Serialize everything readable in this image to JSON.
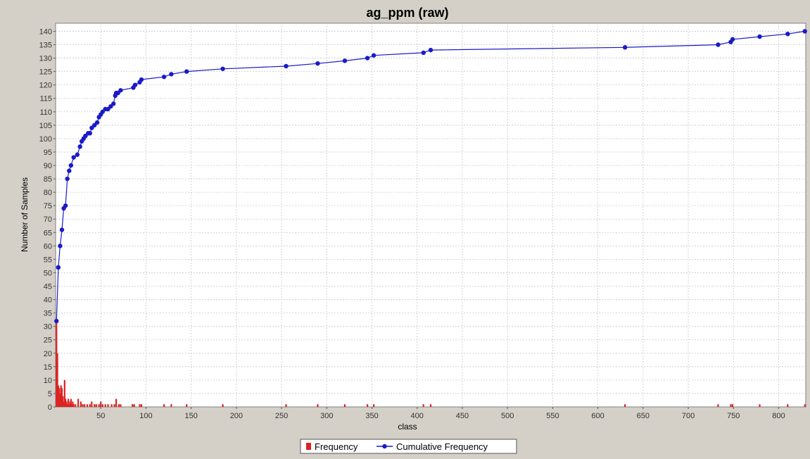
{
  "chart_data": {
    "type": "bar",
    "title": "ag_ppm (raw)",
    "xlabel": "class",
    "ylabel": "Number of Samples",
    "xlim": [
      0,
      830
    ],
    "ylim": [
      0,
      143
    ],
    "x_ticks": [
      50,
      100,
      150,
      200,
      250,
      300,
      350,
      400,
      450,
      500,
      550,
      600,
      650,
      700,
      750,
      800
    ],
    "y_ticks": [
      0,
      5,
      10,
      15,
      20,
      25,
      30,
      35,
      40,
      45,
      50,
      55,
      60,
      65,
      70,
      75,
      80,
      85,
      90,
      95,
      100,
      105,
      110,
      115,
      120,
      125,
      130,
      135,
      140
    ],
    "grid": true,
    "legend_position": "bottom",
    "colors": {
      "frequency": "#dd2222",
      "cumulative": "#1a1ac8",
      "plot_background": "#ffffff",
      "grid": "#c8c8c8",
      "frame": "#d4d0c8"
    },
    "series": [
      {
        "name": "Frequency",
        "type": "bar",
        "x": [
          1,
          2,
          3,
          4,
          5,
          6,
          7,
          8,
          9,
          10,
          11,
          12,
          13,
          14,
          15,
          16,
          17,
          18,
          19,
          20,
          22,
          25,
          28,
          30,
          32,
          35,
          38,
          40,
          43,
          45,
          48,
          50,
          52,
          55,
          58,
          62,
          65,
          67,
          70,
          72,
          85,
          87,
          93,
          95,
          120,
          128,
          145,
          185,
          255,
          290,
          320,
          345,
          352,
          407,
          415,
          630,
          733,
          747,
          749,
          779,
          810,
          829
        ],
        "values": [
          32,
          20,
          8,
          7,
          5,
          8,
          7,
          4,
          2,
          10,
          3,
          2,
          1,
          3,
          1,
          2,
          3,
          1,
          2,
          1,
          1,
          3,
          2,
          1,
          1,
          1,
          1,
          2,
          1,
          1,
          1,
          2,
          1,
          1,
          1,
          1,
          1,
          3,
          1,
          1,
          1,
          1,
          1,
          1,
          1,
          1,
          1,
          1,
          1,
          1,
          1,
          1,
          1,
          1,
          1,
          1,
          1,
          1,
          1,
          1,
          1,
          1
        ]
      },
      {
        "name": "Cumulative Frequency",
        "type": "line",
        "x": [
          1,
          3,
          5,
          7,
          9,
          11,
          13,
          15,
          17,
          20,
          24,
          27,
          29,
          31,
          33,
          36,
          38,
          40,
          43,
          46,
          48,
          50,
          52,
          55,
          58,
          61,
          64,
          66,
          67,
          69,
          72,
          86,
          88,
          93,
          95,
          120,
          128,
          145,
          185,
          255,
          290,
          320,
          345,
          352,
          407,
          415,
          630,
          733,
          747,
          749,
          779,
          810,
          829
        ],
        "values": [
          32,
          52,
          60,
          66,
          74,
          75,
          85,
          88,
          90,
          93,
          94,
          97,
          99,
          100,
          101,
          102,
          102,
          104,
          105,
          106,
          108,
          109,
          110,
          111,
          111,
          112,
          113,
          116,
          117,
          117,
          118,
          119,
          120,
          121,
          122,
          123,
          124,
          125,
          126,
          127,
          128,
          129,
          130,
          131,
          132,
          133,
          134,
          135,
          136,
          137,
          138,
          139,
          140
        ]
      }
    ]
  },
  "legend": {
    "frequency_label": "Frequency",
    "cumulative_label": "Cumulative Frequency"
  }
}
